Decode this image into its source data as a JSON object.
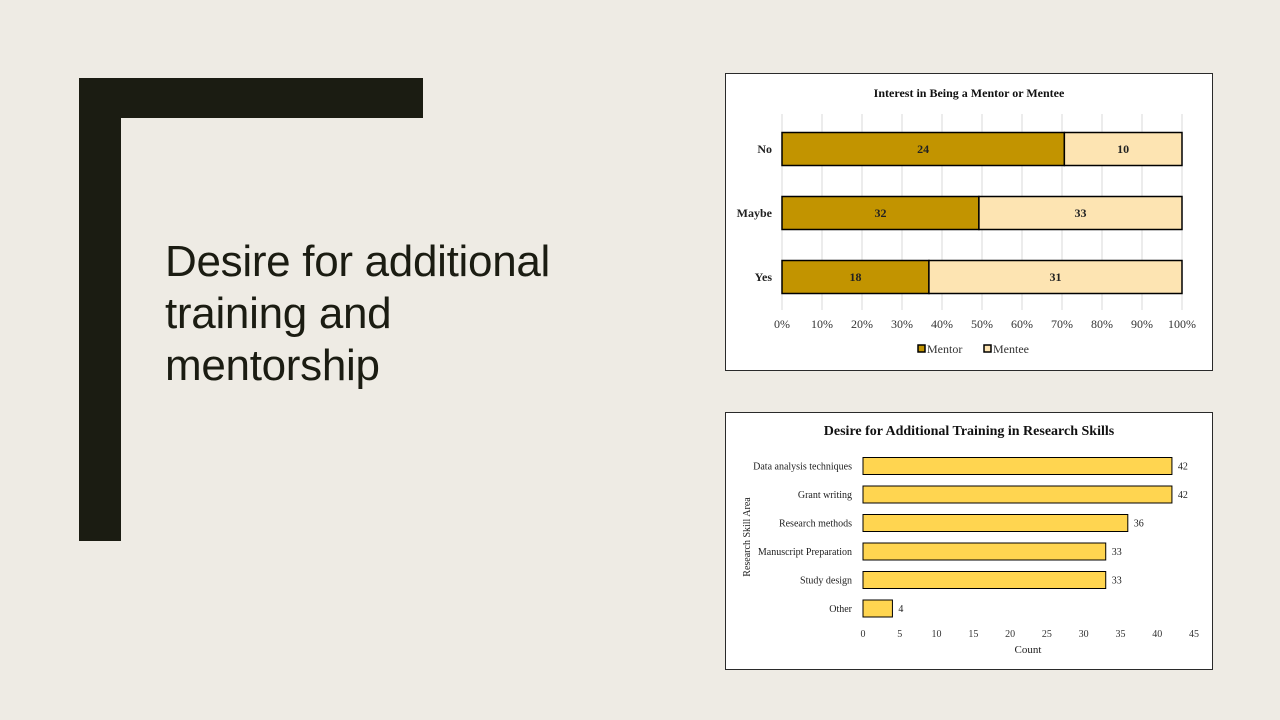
{
  "slide": {
    "title_lines": [
      "Desire for additional",
      "training and",
      "mentorship"
    ]
  },
  "colors": {
    "background": "#EEEBE4",
    "accent_dark": "#1B1C12",
    "mentor": "#C29400",
    "mentee": "#FDE4B2",
    "skill_bar": "#FFD550"
  },
  "chart_data": [
    {
      "type": "bar",
      "orientation": "horizontal",
      "stacked": "percent",
      "title": "Interest in Being a Mentor or Mentee",
      "categories": [
        "No",
        "Maybe",
        "Yes"
      ],
      "series": [
        {
          "name": "Mentor",
          "values": [
            24,
            32,
            18
          ],
          "color": "#C29400"
        },
        {
          "name": "Mentee",
          "values": [
            10,
            33,
            31
          ],
          "color": "#FDE4B2"
        }
      ],
      "x_ticks": [
        "0%",
        "10%",
        "20%",
        "30%",
        "40%",
        "50%",
        "60%",
        "70%",
        "80%",
        "90%",
        "100%"
      ],
      "xlim": [
        0,
        100
      ],
      "grid": "vertical",
      "legend": "bottom"
    },
    {
      "type": "bar",
      "orientation": "horizontal",
      "title": "Desire for Additional Training in Research Skills",
      "categories": [
        "Data analysis techniques",
        "Grant writing",
        "Research methods",
        "Manuscript Preparation",
        "Study design",
        "Other"
      ],
      "values": [
        42,
        42,
        36,
        33,
        33,
        4
      ],
      "xlabel": "Count",
      "ylabel": "Research Skill Area",
      "x_ticks": [
        "0",
        "5",
        "10",
        "15",
        "20",
        "25",
        "30",
        "35",
        "40",
        "45"
      ],
      "xlim": [
        0,
        45
      ],
      "grid": false,
      "color": "#FFD550"
    }
  ]
}
